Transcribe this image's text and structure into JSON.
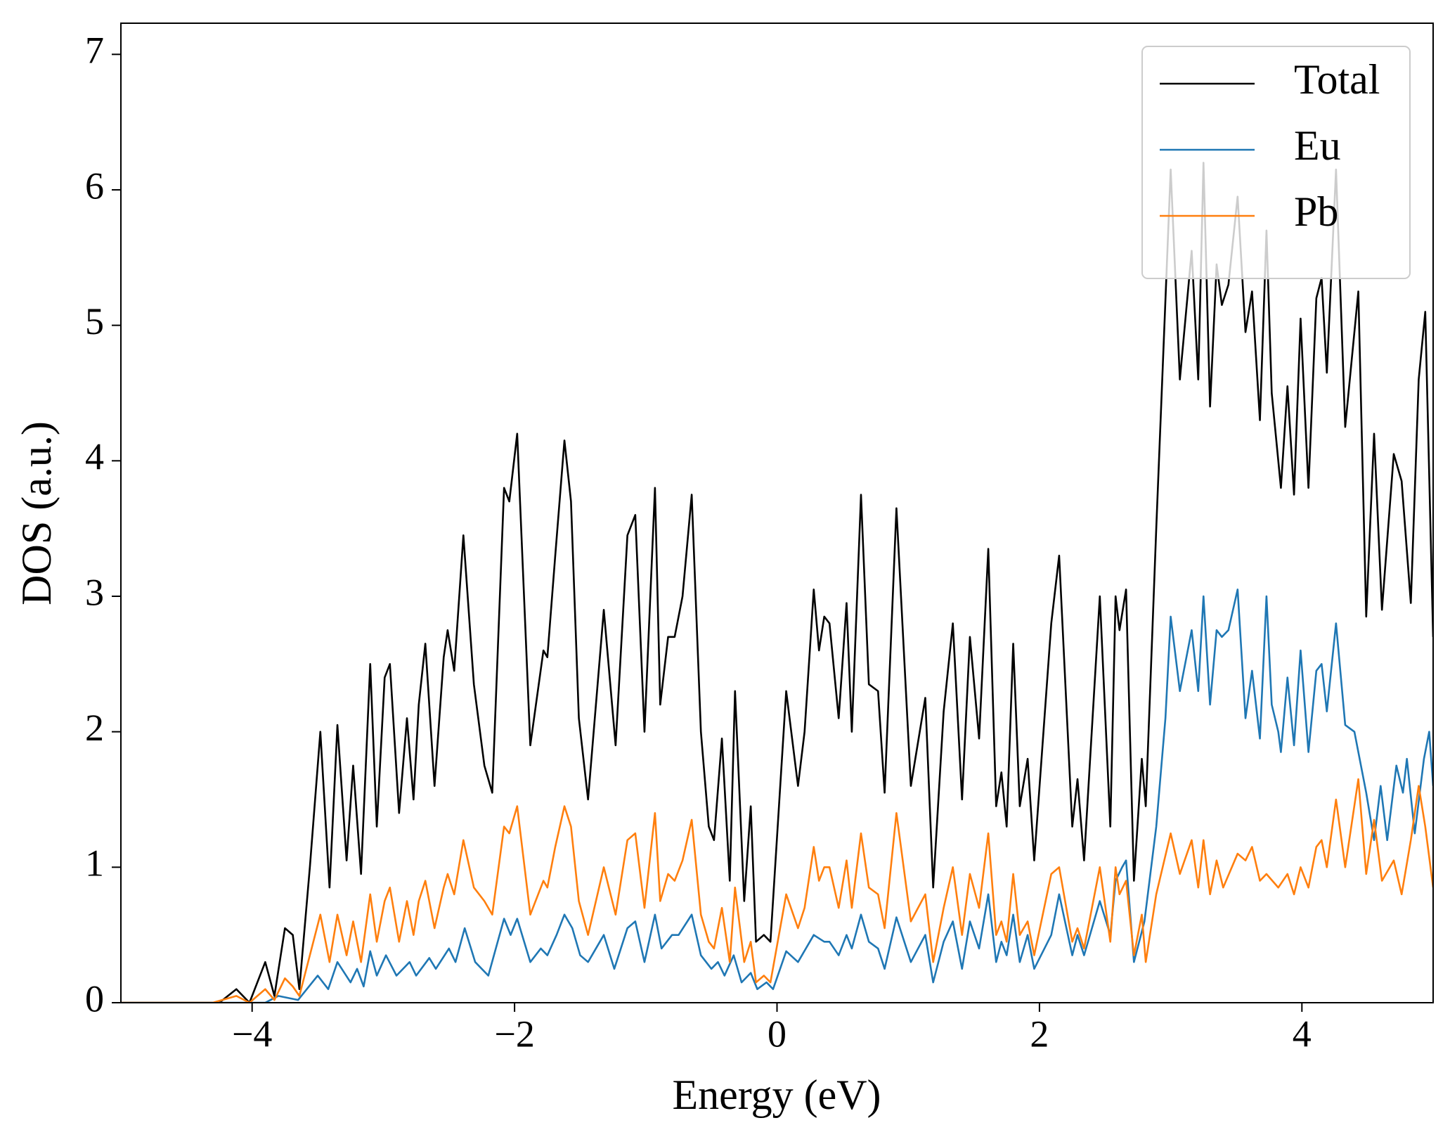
{
  "chart_data": {
    "type": "line",
    "xlabel": "Energy (eV)",
    "ylabel": "DOS (a.u.)",
    "xlim": [
      -5,
      5
    ],
    "ylim": [
      0,
      7.23
    ],
    "xticks": [
      {
        "value": -4,
        "label": "−4"
      },
      {
        "value": -2,
        "label": "−2"
      },
      0,
      2,
      4
    ],
    "yticks": [
      0,
      1,
      2,
      3,
      4,
      5,
      6,
      7
    ],
    "legend": "upper right",
    "series": [
      {
        "name": "Total",
        "color": "#000000",
        "x": [
          -5,
          -4.25,
          -4.12,
          -4.02,
          -3.9,
          -3.83,
          -3.75,
          -3.69,
          -3.64,
          -3.56,
          -3.48,
          -3.41,
          -3.35,
          -3.28,
          -3.23,
          -3.17,
          -3.1,
          -3.05,
          -2.99,
          -2.95,
          -2.88,
          -2.82,
          -2.77,
          -2.73,
          -2.68,
          -2.61,
          -2.54,
          -2.51,
          -2.46,
          -2.39,
          -2.31,
          -2.23,
          -2.17,
          -2.08,
          -2.04,
          -1.98,
          -1.88,
          -1.78,
          -1.75,
          -1.69,
          -1.62,
          -1.57,
          -1.51,
          -1.44,
          -1.32,
          -1.23,
          -1.14,
          -1.08,
          -1.01,
          -0.93,
          -0.89,
          -0.83,
          -0.78,
          -0.72,
          -0.65,
          -0.58,
          -0.52,
          -0.48,
          -0.42,
          -0.36,
          -0.32,
          -0.25,
          -0.2,
          -0.16,
          -0.1,
          -0.05,
          0.07,
          0.16,
          0.21,
          0.28,
          0.32,
          0.36,
          0.4,
          0.47,
          0.53,
          0.57,
          0.64,
          0.7,
          0.77,
          0.82,
          0.91,
          1.02,
          1.13,
          1.19,
          1.27,
          1.34,
          1.41,
          1.47,
          1.54,
          1.61,
          1.67,
          1.71,
          1.75,
          1.8,
          1.85,
          1.91,
          1.96,
          2.09,
          2.15,
          2.25,
          2.29,
          2.34,
          2.46,
          2.54,
          2.58,
          2.61,
          2.66,
          2.72,
          2.78,
          2.81,
          2.89,
          3.0,
          3.07,
          3.16,
          3.21,
          3.25,
          3.3,
          3.35,
          3.39,
          3.44,
          3.51,
          3.57,
          3.62,
          3.68,
          3.73,
          3.77,
          3.82,
          3.84,
          3.89,
          3.94,
          3.99,
          4.05,
          4.11,
          4.15,
          4.19,
          4.26,
          4.33,
          4.43,
          4.49,
          4.55,
          4.61,
          4.7,
          4.76,
          4.83,
          4.89,
          4.94,
          5.0
        ],
        "values": [
          0,
          0,
          0.1,
          0,
          0.3,
          0.05,
          0.55,
          0.5,
          0.1,
          1.0,
          2.0,
          0.85,
          2.05,
          1.05,
          1.75,
          0.95,
          2.5,
          1.3,
          2.4,
          2.5,
          1.4,
          2.1,
          1.5,
          2.2,
          2.65,
          1.6,
          2.55,
          2.75,
          2.45,
          3.45,
          2.35,
          1.75,
          1.55,
          3.8,
          3.7,
          4.2,
          1.9,
          2.6,
          2.55,
          3.3,
          4.15,
          3.7,
          2.1,
          1.5,
          2.9,
          1.9,
          3.45,
          3.6,
          2.0,
          3.8,
          2.2,
          2.7,
          2.7,
          3.0,
          3.75,
          2.0,
          1.3,
          1.2,
          1.95,
          0.9,
          2.3,
          0.75,
          1.45,
          0.45,
          0.5,
          0.45,
          2.3,
          1.6,
          2.0,
          3.05,
          2.6,
          2.85,
          2.8,
          2.1,
          2.95,
          2.0,
          3.75,
          2.35,
          2.3,
          1.55,
          3.65,
          1.6,
          2.25,
          0.85,
          2.15,
          2.8,
          1.5,
          2.7,
          1.95,
          3.35,
          1.45,
          1.7,
          1.3,
          2.65,
          1.45,
          1.8,
          1.05,
          2.8,
          3.3,
          1.3,
          1.65,
          1.05,
          3.0,
          1.3,
          3.0,
          2.75,
          3.05,
          0.9,
          1.8,
          1.45,
          3.5,
          6.15,
          4.6,
          5.55,
          4.6,
          6.2,
          4.4,
          5.45,
          5.15,
          5.3,
          5.95,
          4.95,
          5.25,
          4.3,
          5.7,
          4.5,
          4.0,
          3.8,
          4.55,
          3.75,
          5.05,
          3.8,
          5.2,
          5.35,
          4.65,
          6.15,
          4.25,
          5.25,
          2.85,
          4.2,
          2.9,
          4.05,
          3.85,
          2.95,
          4.6,
          5.1,
          2.7
        ]
      },
      {
        "name": "Eu",
        "color": "#1f77b4",
        "x": [
          -5,
          -3.9,
          -3.8,
          -3.65,
          -3.5,
          -3.42,
          -3.35,
          -3.25,
          -3.2,
          -3.15,
          -3.1,
          -3.05,
          -2.98,
          -2.9,
          -2.8,
          -2.75,
          -2.65,
          -2.6,
          -2.5,
          -2.45,
          -2.38,
          -2.3,
          -2.2,
          -2.08,
          -2.03,
          -1.98,
          -1.88,
          -1.8,
          -1.75,
          -1.68,
          -1.62,
          -1.56,
          -1.5,
          -1.44,
          -1.32,
          -1.24,
          -1.14,
          -1.08,
          -1.01,
          -0.93,
          -0.88,
          -0.8,
          -0.75,
          -0.65,
          -0.58,
          -0.5,
          -0.45,
          -0.4,
          -0.33,
          -0.27,
          -0.2,
          -0.15,
          -0.08,
          -0.03,
          0.07,
          0.16,
          0.28,
          0.36,
          0.4,
          0.47,
          0.53,
          0.57,
          0.64,
          0.7,
          0.77,
          0.82,
          0.91,
          1.02,
          1.13,
          1.19,
          1.27,
          1.34,
          1.41,
          1.47,
          1.54,
          1.61,
          1.67,
          1.71,
          1.75,
          1.8,
          1.85,
          1.91,
          1.96,
          2.09,
          2.15,
          2.25,
          2.29,
          2.34,
          2.46,
          2.54,
          2.58,
          2.63,
          2.66,
          2.72,
          2.8,
          2.89,
          2.96,
          3.0,
          3.07,
          3.16,
          3.21,
          3.25,
          3.3,
          3.35,
          3.39,
          3.44,
          3.51,
          3.57,
          3.62,
          3.68,
          3.73,
          3.77,
          3.82,
          3.84,
          3.89,
          3.94,
          3.99,
          4.05,
          4.11,
          4.15,
          4.19,
          4.26,
          4.33,
          4.4,
          4.49,
          4.55,
          4.6,
          4.65,
          4.72,
          4.77,
          4.8,
          4.86,
          4.93,
          4.97,
          5.0
        ],
        "values": [
          0,
          0,
          0.05,
          0.02,
          0.2,
          0.1,
          0.3,
          0.15,
          0.25,
          0.12,
          0.38,
          0.2,
          0.35,
          0.2,
          0.3,
          0.2,
          0.33,
          0.25,
          0.4,
          0.3,
          0.55,
          0.3,
          0.2,
          0.62,
          0.5,
          0.62,
          0.3,
          0.4,
          0.35,
          0.5,
          0.65,
          0.55,
          0.35,
          0.3,
          0.5,
          0.25,
          0.55,
          0.6,
          0.3,
          0.65,
          0.4,
          0.5,
          0.5,
          0.65,
          0.35,
          0.25,
          0.3,
          0.2,
          0.35,
          0.15,
          0.22,
          0.1,
          0.15,
          0.1,
          0.38,
          0.3,
          0.5,
          0.45,
          0.45,
          0.35,
          0.5,
          0.4,
          0.65,
          0.45,
          0.4,
          0.25,
          0.63,
          0.3,
          0.5,
          0.15,
          0.45,
          0.6,
          0.25,
          0.6,
          0.4,
          0.8,
          0.3,
          0.45,
          0.35,
          0.65,
          0.3,
          0.5,
          0.25,
          0.5,
          0.8,
          0.35,
          0.5,
          0.35,
          0.75,
          0.5,
          0.9,
          1.0,
          1.05,
          0.3,
          0.6,
          1.3,
          2.1,
          2.85,
          2.3,
          2.75,
          2.3,
          3.0,
          2.2,
          2.75,
          2.7,
          2.75,
          3.05,
          2.1,
          2.45,
          1.95,
          3.0,
          2.2,
          2.0,
          1.85,
          2.4,
          1.9,
          2.6,
          1.85,
          2.45,
          2.5,
          2.15,
          2.8,
          2.05,
          2.0,
          1.55,
          1.2,
          1.6,
          1.2,
          1.75,
          1.55,
          1.8,
          1.25,
          1.8,
          2.0,
          1.6
        ]
      },
      {
        "name": "Pb",
        "color": "#ff7f0e",
        "x": [
          -5,
          -4.3,
          -4.12,
          -4.02,
          -3.9,
          -3.83,
          -3.75,
          -3.69,
          -3.64,
          -3.56,
          -3.48,
          -3.41,
          -3.35,
          -3.28,
          -3.23,
          -3.17,
          -3.1,
          -3.05,
          -2.99,
          -2.95,
          -2.88,
          -2.82,
          -2.77,
          -2.73,
          -2.68,
          -2.61,
          -2.54,
          -2.51,
          -2.46,
          -2.39,
          -2.31,
          -2.23,
          -2.17,
          -2.08,
          -2.04,
          -1.98,
          -1.88,
          -1.78,
          -1.75,
          -1.69,
          -1.62,
          -1.57,
          -1.51,
          -1.44,
          -1.32,
          -1.23,
          -1.14,
          -1.08,
          -1.01,
          -0.93,
          -0.89,
          -0.83,
          -0.78,
          -0.72,
          -0.65,
          -0.58,
          -0.52,
          -0.48,
          -0.42,
          -0.36,
          -0.32,
          -0.25,
          -0.2,
          -0.16,
          -0.1,
          -0.05,
          0.07,
          0.16,
          0.21,
          0.28,
          0.32,
          0.36,
          0.4,
          0.47,
          0.53,
          0.57,
          0.64,
          0.7,
          0.77,
          0.82,
          0.91,
          1.02,
          1.13,
          1.19,
          1.27,
          1.34,
          1.41,
          1.47,
          1.54,
          1.61,
          1.67,
          1.71,
          1.75,
          1.8,
          1.85,
          1.91,
          1.96,
          2.09,
          2.15,
          2.25,
          2.29,
          2.34,
          2.46,
          2.54,
          2.58,
          2.61,
          2.66,
          2.72,
          2.78,
          2.81,
          2.89,
          3.0,
          3.07,
          3.16,
          3.21,
          3.25,
          3.3,
          3.35,
          3.4,
          3.51,
          3.57,
          3.62,
          3.68,
          3.73,
          3.82,
          3.89,
          3.94,
          3.99,
          4.05,
          4.11,
          4.15,
          4.19,
          4.26,
          4.33,
          4.43,
          4.49,
          4.55,
          4.61,
          4.7,
          4.76,
          4.83,
          4.89,
          4.94,
          5.0
        ],
        "values": [
          0,
          0,
          0.05,
          0,
          0.1,
          0.02,
          0.18,
          0.12,
          0.05,
          0.35,
          0.65,
          0.3,
          0.65,
          0.35,
          0.6,
          0.3,
          0.8,
          0.45,
          0.75,
          0.85,
          0.45,
          0.75,
          0.5,
          0.75,
          0.9,
          0.55,
          0.85,
          0.95,
          0.8,
          1.2,
          0.85,
          0.75,
          0.65,
          1.3,
          1.25,
          1.45,
          0.65,
          0.9,
          0.85,
          1.15,
          1.45,
          1.3,
          0.75,
          0.5,
          1.0,
          0.65,
          1.2,
          1.25,
          0.7,
          1.4,
          0.75,
          0.95,
          0.9,
          1.05,
          1.35,
          0.65,
          0.45,
          0.4,
          0.7,
          0.3,
          0.85,
          0.3,
          0.45,
          0.15,
          0.2,
          0.15,
          0.8,
          0.55,
          0.7,
          1.15,
          0.9,
          1.0,
          1.0,
          0.7,
          1.05,
          0.7,
          1.25,
          0.85,
          0.8,
          0.55,
          1.4,
          0.6,
          0.8,
          0.3,
          0.7,
          1.0,
          0.5,
          0.95,
          0.7,
          1.25,
          0.5,
          0.6,
          0.45,
          0.95,
          0.5,
          0.6,
          0.35,
          0.95,
          1.0,
          0.45,
          0.55,
          0.4,
          1.0,
          0.45,
          1.0,
          0.8,
          0.9,
          0.35,
          0.65,
          0.3,
          0.8,
          1.25,
          0.95,
          1.2,
          0.85,
          1.2,
          0.8,
          1.05,
          0.85,
          1.1,
          1.05,
          1.15,
          0.9,
          0.95,
          0.85,
          0.95,
          0.8,
          1.0,
          0.85,
          1.15,
          1.2,
          1.0,
          1.5,
          1.0,
          1.65,
          0.95,
          1.35,
          0.9,
          1.05,
          0.8,
          1.2,
          1.6,
          1.3,
          0.85
        ]
      }
    ]
  }
}
